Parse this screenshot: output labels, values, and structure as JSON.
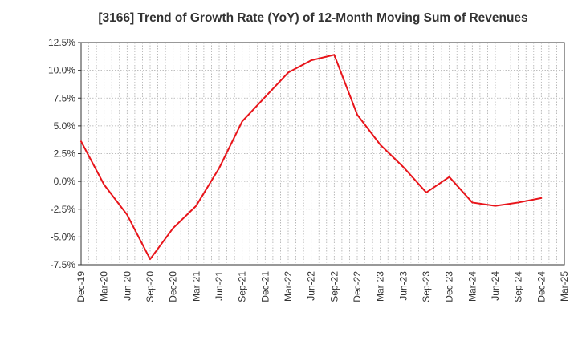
{
  "chart_data": {
    "type": "line",
    "title": "[3166]  Trend of Growth Rate (YoY) of 12-Month Moving Sum of Revenues",
    "xlabel": "",
    "ylabel": "",
    "ylim": [
      -7.5,
      12.5
    ],
    "yticks": [
      "12.5%",
      "10.0%",
      "7.5%",
      "5.0%",
      "2.5%",
      "0.0%",
      "-2.5%",
      "-5.0%",
      "-7.5%"
    ],
    "ytick_values": [
      12.5,
      10.0,
      7.5,
      5.0,
      2.5,
      0.0,
      -2.5,
      -5.0,
      -7.5
    ],
    "xticks": [
      "Dec-19",
      "Mar-20",
      "Jun-20",
      "Sep-20",
      "Dec-20",
      "Mar-21",
      "Jun-21",
      "Sep-21",
      "Dec-21",
      "Mar-22",
      "Jun-22",
      "Sep-22",
      "Dec-22",
      "Mar-23",
      "Jun-23",
      "Sep-23",
      "Dec-23",
      "Mar-24",
      "Jun-24",
      "Sep-24",
      "Dec-24",
      "Mar-25"
    ],
    "grid": true,
    "series": [
      {
        "color": "#e8141a",
        "x": [
          "Dec-19",
          "Mar-20",
          "Jun-20",
          "Sep-20",
          "Dec-20",
          "Mar-21",
          "Jun-21",
          "Sep-21",
          "Dec-21",
          "Mar-22",
          "Jun-22",
          "Sep-22",
          "Dec-22",
          "Mar-23",
          "Jun-23",
          "Sep-23",
          "Dec-23",
          "Mar-24",
          "Jun-24",
          "Sep-24",
          "Dec-24"
        ],
        "values": [
          3.6,
          -0.3,
          -3.0,
          -7.0,
          -4.2,
          -2.2,
          1.2,
          5.4,
          7.6,
          9.8,
          10.9,
          11.4,
          6.0,
          3.3,
          1.3,
          -1.0,
          0.4,
          -1.9,
          -2.2,
          -1.9,
          -1.5
        ]
      }
    ]
  }
}
